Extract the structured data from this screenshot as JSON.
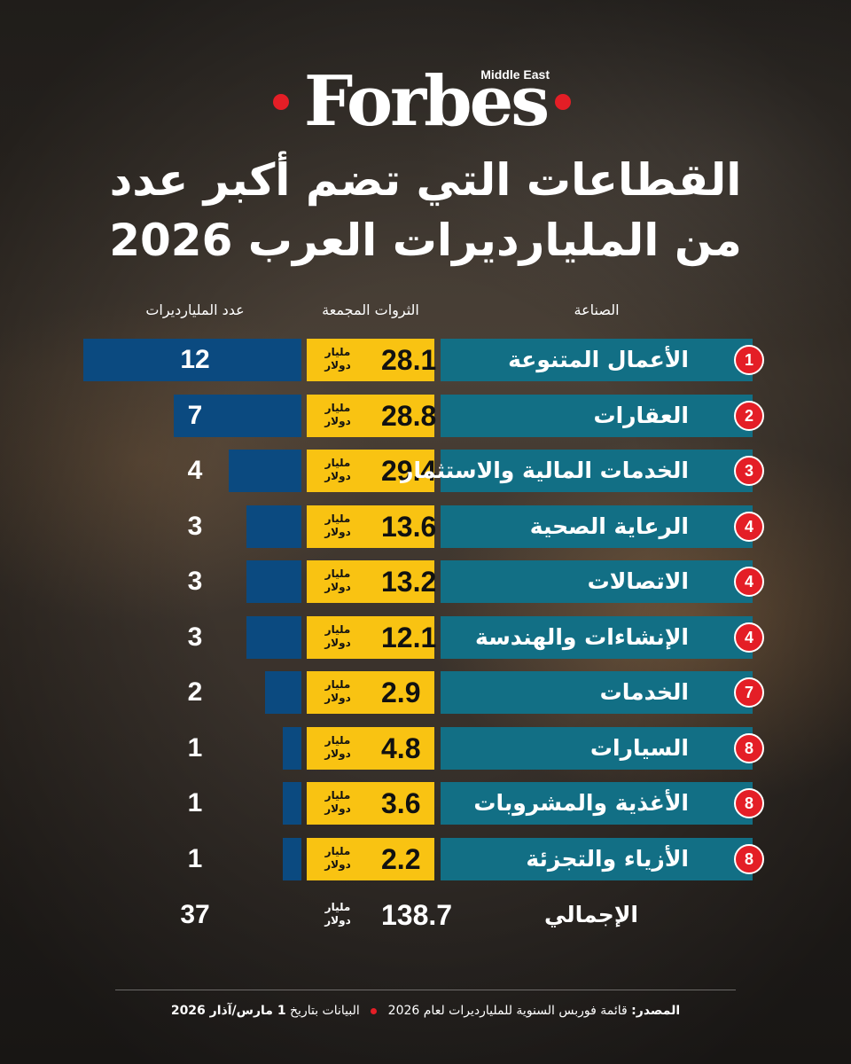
{
  "brand": {
    "name": "Forbes",
    "edition": "Middle East",
    "accent_color": "#e41e26"
  },
  "title": {
    "line1": "القطاعات التي تضم أكبر عدد",
    "line2": "من المليارديرات العرب 2026"
  },
  "columns": {
    "sector": "الصناعة",
    "wealth": "الثروات المجمعة",
    "count": "عدد المليارديرات"
  },
  "unit": {
    "line1": "مليار",
    "line2": "دولار"
  },
  "colors": {
    "count_bar": "#0b4a80",
    "wealth_box": "#f9c312",
    "sector_box": "#126f85"
  },
  "chart_data": {
    "type": "bar",
    "title": "القطاعات التي تضم أكبر عدد من المليارديرات العرب 2026",
    "categories": [
      "الأعمال المتنوعة",
      "العقارات",
      "الخدمات المالية والاستثمار",
      "الرعاية الصحية",
      "الاتصالات",
      "الإنشاءات والهندسة",
      "الخدمات",
      "السيارات",
      "الأغذية والمشروبات",
      "الأزياء والتجزئة"
    ],
    "ranks": [
      "1",
      "2",
      "3",
      "4",
      "4",
      "4",
      "7",
      "8",
      "8",
      "8"
    ],
    "series": [
      {
        "name": "عدد المليارديرات",
        "values": [
          12,
          7,
          4,
          3,
          3,
          3,
          2,
          1,
          1,
          1
        ]
      },
      {
        "name": "الثروات المجمعة",
        "values": [
          28.1,
          28.8,
          29.4,
          13.6,
          13.2,
          12.1,
          2.9,
          4.8,
          3.6,
          2.2
        ]
      }
    ],
    "value_max": 12,
    "total": {
      "label": "الإجمالي",
      "count": 37,
      "wealth": 138.7
    }
  },
  "footer": {
    "source_label": "المصدر:",
    "source_text": "قائمة فوربس السنوية للمليارديرات لعام 2026",
    "date_text": "البيانات بتاريخ",
    "date_value": "1 مارس/آذار 2026"
  }
}
